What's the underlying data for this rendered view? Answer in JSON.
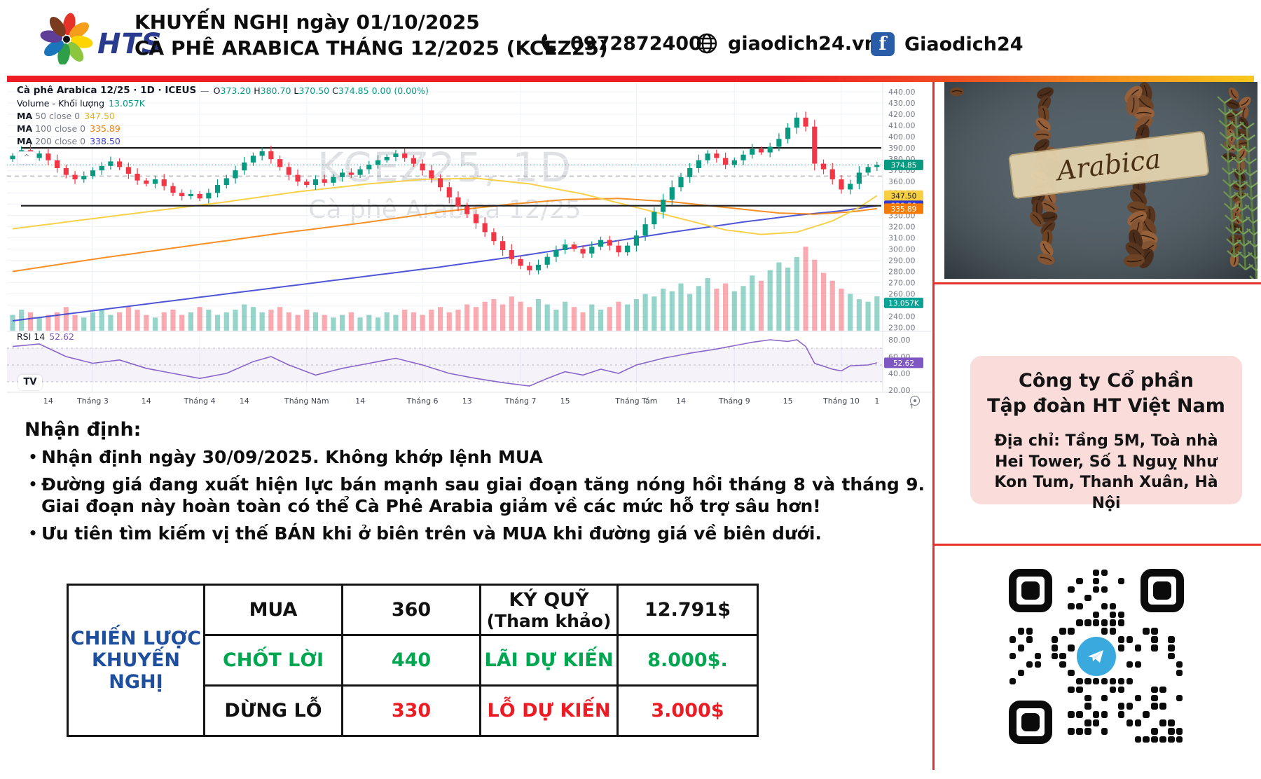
{
  "header": {
    "logo_text": "HTS",
    "title_line1": "KHUYẾN NGHỊ ngày 01/10/2025",
    "title_line2": "CÀ PHÊ ARABICA THÁNG 12/2025 (KCEZ25)",
    "phone": "0972872400",
    "website": "giaodich24.vn",
    "facebook": "Giaodich24",
    "facebook_icon_letter": "f"
  },
  "colors": {
    "accent_red": "#e8312a",
    "candle_up": "#089981",
    "candle_down": "#f23645",
    "ma50": "#f8cf40",
    "ma100": "#f57c00",
    "ma200": "#3039cf",
    "rsi": "#7e57c2",
    "table_green": "#00a650",
    "table_red": "#ec1c24",
    "table_blue": "#1e4f9e",
    "pink_box": "#fadcdb",
    "facebook_blue": "#2a5da8"
  },
  "chart": {
    "legend_title": "Cà phê Arabica 12/25 · 1D · ICEUS",
    "minimize_glyph": "—",
    "o_label": "O",
    "o": "373.20",
    "h_label": "H",
    "h": "380.70",
    "l_label": "L",
    "l": "370.50",
    "c_label": "C",
    "c": "374.85",
    "change": "0.00 (0.00%)",
    "volume_label": "Volume - Khối lượng",
    "volume_value": "13.057K",
    "ma50_prefix": "MA",
    "ma50_params": "50 close 0",
    "ma50_value": "347.50",
    "ma100_prefix": "MA",
    "ma100_params": "100 close 0",
    "ma100_value": "335.89",
    "ma200_prefix": "MA",
    "ma200_params": "200 close 0",
    "ma200_value": "338.50",
    "rsi_label": "RSI 14",
    "rsi_value": "52.62",
    "watermark_line1": "KCEZ25, 1D",
    "watermark_line2": "Cà phê Arabica 12/25",
    "collapse_glyph": "^",
    "tv_logo_text": "TV",
    "axis_last_tick": "1"
  },
  "chart_data": {
    "type": "candlestick",
    "title": "Cà phê Arabica 12/25 · 1D · ICEUS",
    "first_open": 380,
    "closes": [
      383,
      388,
      381,
      385,
      379,
      372,
      366,
      362,
      365,
      370,
      374,
      378,
      373,
      367,
      361,
      358,
      362,
      356,
      350,
      347,
      349,
      345,
      350,
      357,
      363,
      370,
      377,
      383,
      387,
      380,
      373,
      366,
      360,
      357,
      362,
      359,
      364,
      368,
      366,
      371,
      375,
      379,
      382,
      385,
      381,
      376,
      370,
      363,
      355,
      346,
      338,
      331,
      323,
      315,
      307,
      299,
      291,
      285,
      281,
      286,
      293,
      299,
      304,
      300,
      296,
      302,
      308,
      303,
      297,
      303,
      312,
      322,
      333,
      344,
      355,
      364,
      372,
      379,
      385,
      381,
      375,
      379,
      384,
      389,
      386,
      391,
      398,
      408,
      417,
      409,
      376,
      371,
      362,
      353,
      358,
      368,
      373,
      374.85
    ],
    "volumes_k": [
      6,
      8,
      7,
      5,
      6,
      7,
      9,
      6,
      5,
      7,
      8,
      6,
      7,
      9,
      8,
      6,
      5,
      7,
      8,
      6,
      7,
      9,
      8,
      6,
      7,
      8,
      10,
      9,
      7,
      8,
      9,
      7,
      6,
      8,
      7,
      6,
      5,
      6,
      7,
      5,
      6,
      5,
      7,
      6,
      8,
      7,
      6,
      8,
      9,
      7,
      8,
      10,
      9,
      11,
      12,
      10,
      13,
      11,
      9,
      12,
      10,
      8,
      11,
      9,
      7,
      10,
      8,
      9,
      11,
      10,
      12,
      14,
      13,
      16,
      15,
      18,
      14,
      17,
      20,
      16,
      18,
      15,
      17,
      21,
      19,
      23,
      26,
      24,
      28,
      32,
      27,
      22,
      19,
      16,
      14,
      12,
      11,
      13.057
    ],
    "ma50_points": [
      [
        0,
        318
      ],
      [
        8,
        326
      ],
      [
        16,
        334
      ],
      [
        24,
        342
      ],
      [
        32,
        351
      ],
      [
        40,
        358
      ],
      [
        46,
        362
      ],
      [
        52,
        363
      ],
      [
        58,
        358
      ],
      [
        64,
        349
      ],
      [
        70,
        337
      ],
      [
        76,
        325
      ],
      [
        80,
        317
      ],
      [
        84,
        313
      ],
      [
        88,
        315
      ],
      [
        92,
        325
      ],
      [
        95,
        337
      ],
      [
        97,
        347.5
      ]
    ],
    "ma100_points": [
      [
        0,
        280
      ],
      [
        10,
        292
      ],
      [
        20,
        303
      ],
      [
        30,
        314
      ],
      [
        40,
        324
      ],
      [
        48,
        333
      ],
      [
        56,
        340
      ],
      [
        62,
        344
      ],
      [
        68,
        345
      ],
      [
        74,
        342
      ],
      [
        80,
        337
      ],
      [
        86,
        332
      ],
      [
        90,
        331
      ],
      [
        94,
        333
      ],
      [
        97,
        335.89
      ]
    ],
    "ma200_points": [
      [
        0,
        236
      ],
      [
        12,
        248
      ],
      [
        24,
        260
      ],
      [
        36,
        272
      ],
      [
        48,
        284
      ],
      [
        58,
        295
      ],
      [
        66,
        305
      ],
      [
        74,
        315
      ],
      [
        82,
        324
      ],
      [
        88,
        330
      ],
      [
        93,
        334
      ],
      [
        97,
        338.5
      ]
    ],
    "rsi_points": [
      [
        0,
        72
      ],
      [
        3,
        75
      ],
      [
        6,
        60
      ],
      [
        9,
        52
      ],
      [
        12,
        56
      ],
      [
        15,
        46
      ],
      [
        18,
        40
      ],
      [
        21,
        34
      ],
      [
        24,
        40
      ],
      [
        27,
        54
      ],
      [
        29,
        60
      ],
      [
        31,
        50
      ],
      [
        34,
        38
      ],
      [
        37,
        46
      ],
      [
        40,
        52
      ],
      [
        43,
        58
      ],
      [
        46,
        50
      ],
      [
        49,
        40
      ],
      [
        52,
        34
      ],
      [
        55,
        29
      ],
      [
        58,
        25
      ],
      [
        60,
        34
      ],
      [
        62,
        42
      ],
      [
        64,
        38
      ],
      [
        66,
        45
      ],
      [
        68,
        40
      ],
      [
        70,
        50
      ],
      [
        73,
        58
      ],
      [
        76,
        64
      ],
      [
        79,
        69
      ],
      [
        81,
        73
      ],
      [
        83,
        77
      ],
      [
        85,
        80
      ],
      [
        87,
        78
      ],
      [
        88,
        80
      ],
      [
        89,
        72
      ],
      [
        90,
        52
      ],
      [
        92,
        45
      ],
      [
        93,
        43
      ],
      [
        94,
        49
      ],
      [
        96,
        50
      ],
      [
        97,
        52.62
      ]
    ],
    "levels": {
      "resistance": 390,
      "support": 338.5,
      "dashed_gray": 365,
      "last_price": 374.85
    },
    "price_axis": {
      "min": 230,
      "max": 440,
      "step": 10
    },
    "rsi_axis": [
      80,
      60,
      40,
      20
    ],
    "rsi_guides": [
      70,
      50,
      30
    ],
    "badges": [
      {
        "text": "374.85",
        "p": 374.85,
        "bg": "#089981",
        "fg": "#ffffff",
        "pane": "price"
      },
      {
        "text": "347.50",
        "p": 347.5,
        "bg": "#f8cf40",
        "fg": "#131722",
        "pane": "price"
      },
      {
        "text": "338.50",
        "p": 338.5,
        "bg": "#3039cf",
        "fg": "#ffffff",
        "pane": "price"
      },
      {
        "text": "335.89",
        "p": 335.89,
        "bg": "#f57c00",
        "fg": "#ffffff",
        "pane": "price"
      },
      {
        "text": "13.057K",
        "p": 252,
        "bg": "#0aa396",
        "fg": "#ffffff",
        "pane": "price"
      },
      {
        "text": "52.62",
        "p": 52.62,
        "bg": "#7e57c2",
        "fg": "#ffffff",
        "pane": "rsi"
      }
    ],
    "x_ticks": [
      {
        "label": "14",
        "i": 4
      },
      {
        "label": "Tháng 3",
        "i": 9
      },
      {
        "label": "14",
        "i": 15
      },
      {
        "label": "Tháng 4",
        "i": 21
      },
      {
        "label": "14",
        "i": 26
      },
      {
        "label": "Tháng Năm",
        "i": 33
      },
      {
        "label": "14",
        "i": 39
      },
      {
        "label": "Tháng 6",
        "i": 46
      },
      {
        "label": "13",
        "i": 51
      },
      {
        "label": "Tháng 7",
        "i": 57
      },
      {
        "label": "15",
        "i": 62
      },
      {
        "label": "Tháng Tám",
        "i": 70
      },
      {
        "label": "14",
        "i": 75
      },
      {
        "label": "Tháng 9",
        "i": 81
      },
      {
        "label": "15",
        "i": 87
      },
      {
        "label": "Tháng 10",
        "i": 93
      },
      {
        "label": "1",
        "i": 97
      }
    ],
    "month_grid_idx": [
      9,
      21,
      33,
      46,
      57,
      70,
      81,
      93
    ]
  },
  "sidebar": {
    "arabica_label": "Arabica",
    "company_line1": "Công ty Cổ phần",
    "company_line2": "Tập đoàn HT Việt Nam",
    "address": "Địa chỉ: Tầng 5M, Toà nhà Hei Tower, Số 1 Nguỵ Như Kon Tum, Thanh Xuân, Hà Nội"
  },
  "analysis": {
    "title": "Nhận định:",
    "bullets": [
      "Nhận định ngày 30/09/2025. Không khớp lệnh MUA",
      "Đường giá đang xuất hiện lực bán mạnh sau giai đoạn tăng nóng hồi tháng 8 và tháng 9. Giai đoạn này hoàn toàn có thể Cà Phê Arabia giảm về các mức hỗ trợ sâu hơn!",
      "Ưu tiên tìm kiếm vị thế BÁN khi ở biên trên và MUA khi đường giá về biên dưới."
    ]
  },
  "table": {
    "header_line1": "CHIẾN LƯỢC",
    "header_line2": "KHUYẾN NGHỊ",
    "header_color": "#1e4f9e",
    "rows": [
      {
        "cells": [
          {
            "t": "MUA",
            "c": "#111111"
          },
          {
            "t": "360",
            "c": "#111111"
          },
          {
            "t": "KÝ QUỸ",
            "t2": "(Tham khảo)",
            "c": "#111111"
          },
          {
            "t": "12.791$",
            "c": "#111111"
          }
        ]
      },
      {
        "cells": [
          {
            "t": "CHỐT LỜI",
            "c": "#00a650"
          },
          {
            "t": "440",
            "c": "#00a650"
          },
          {
            "t": "LÃI DỰ KIẾN",
            "c": "#00a650"
          },
          {
            "t": "8.000$.",
            "c": "#00a650"
          }
        ]
      },
      {
        "cells": [
          {
            "t": "DỪNG LỖ",
            "c": "#111111"
          },
          {
            "t": "330",
            "c": "#ec1c24"
          },
          {
            "t": "LỖ DỰ KIẾN",
            "c": "#ec1c24"
          },
          {
            "t": "3.000$",
            "c": "#ec1c24"
          }
        ]
      }
    ]
  }
}
